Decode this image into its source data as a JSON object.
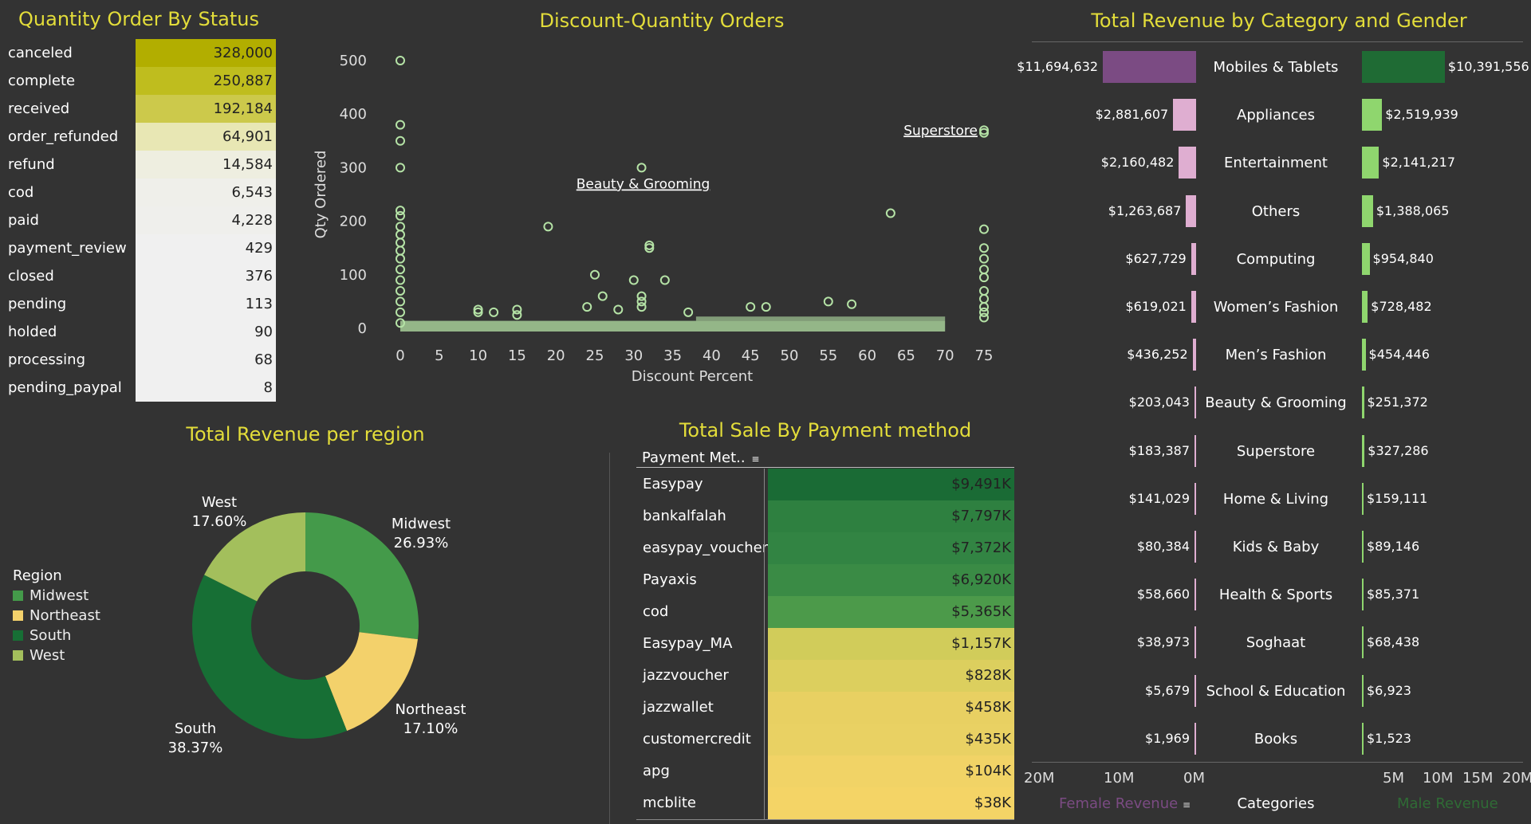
{
  "titles": {
    "status": "Quantity Order By Status",
    "scatter": "Discount-Quantity Orders",
    "category": "Total Revenue by Category and Gender",
    "region": "Total Revenue per region",
    "payment": "Total Sale By Payment method"
  },
  "colors": {
    "title": "#e3dd3a",
    "background": "#333333",
    "female": "#dfaed1",
    "female_top": "#7b4b83",
    "male": "#8fd66e",
    "male_top": "#1f6b34",
    "scatter_point": "#b5e3a6"
  },
  "status_table": {
    "rows": [
      {
        "label": "canceled",
        "value": "328,000",
        "color": "#b2ae00"
      },
      {
        "label": "complete",
        "value": "250,887",
        "color": "#bfbd1e"
      },
      {
        "label": "received",
        "value": "192,184",
        "color": "#ccc94b"
      },
      {
        "label": "order_refunded",
        "value": "64,901",
        "color": "#e8e7b4"
      },
      {
        "label": "refund",
        "value": "14,584",
        "color": "#eeeee0"
      },
      {
        "label": "cod",
        "value": "6,543",
        "color": "#efefea"
      },
      {
        "label": "paid",
        "value": "4,228",
        "color": "#efefec"
      },
      {
        "label": "payment_review",
        "value": "429",
        "color": "#f0f0f0"
      },
      {
        "label": "closed",
        "value": "376",
        "color": "#f0f0f0"
      },
      {
        "label": "pending",
        "value": "113",
        "color": "#f0f0f0"
      },
      {
        "label": "holded",
        "value": "90",
        "color": "#f0f0f0"
      },
      {
        "label": "processing",
        "value": "68",
        "color": "#f0f0f0"
      },
      {
        "label": "pending_paypal",
        "value": "8",
        "color": "#f0f0f0"
      }
    ]
  },
  "scatter": {
    "xlabel": "Discount Percent",
    "ylabel": "Qty Ordered",
    "x_ticks": [
      "0",
      "5",
      "10",
      "15",
      "20",
      "25",
      "30",
      "35",
      "40",
      "45",
      "50",
      "55",
      "60",
      "65",
      "70",
      "75"
    ],
    "y_ticks": [
      "0",
      "100",
      "200",
      "300",
      "400",
      "500"
    ],
    "annotations": [
      "Superstore",
      "Beauty & Grooming"
    ]
  },
  "region": {
    "legend_title": "Region",
    "labels": [
      {
        "name": "West",
        "pct": "17.60%"
      },
      {
        "name": "Midwest",
        "pct": "26.93%"
      },
      {
        "name": "Northeast",
        "pct": "17.10%"
      },
      {
        "name": "South",
        "pct": "38.37%"
      }
    ],
    "legend": [
      "Midwest",
      "Northeast",
      "South",
      "West"
    ]
  },
  "payment": {
    "header": "Payment Met..",
    "rows": [
      {
        "label": "Easypay",
        "value": "$9,491K",
        "color": "#1a6b35"
      },
      {
        "label": "bankalfalah",
        "value": "$7,797K",
        "color": "#2e8040"
      },
      {
        "label": "easypay_voucher",
        "value": "$7,372K",
        "color": "#328443"
      },
      {
        "label": "Payaxis",
        "value": "$6,920K",
        "color": "#3a8b45"
      },
      {
        "label": "cod",
        "value": "$5,365K",
        "color": "#4c9a4a"
      },
      {
        "label": "Easypay_MA",
        "value": "$1,157K",
        "color": "#d1cc5a"
      },
      {
        "label": "jazzvoucher",
        "value": "$828K",
        "color": "#dccf5e"
      },
      {
        "label": "jazzwallet",
        "value": "$458K",
        "color": "#e8d062"
      },
      {
        "label": "customercredit",
        "value": "$435K",
        "color": "#e9d163"
      },
      {
        "label": "apg",
        "value": "$104K",
        "color": "#f1d366"
      },
      {
        "label": "mcblite",
        "value": "$38K",
        "color": "#f4d466"
      }
    ]
  },
  "category_footer": {
    "female_ticks": [
      "20M",
      "10M",
      "0M"
    ],
    "male_ticks": [
      "5M",
      "10M",
      "15M",
      "20M"
    ],
    "female_label": "Female Revenue",
    "categories_label": "Categories",
    "male_label": "Male Revenue"
  },
  "chart_data": [
    {
      "type": "table",
      "title": "Quantity Order By Status",
      "categories": [
        "canceled",
        "complete",
        "received",
        "order_refunded",
        "refund",
        "cod",
        "paid",
        "payment_review",
        "closed",
        "pending",
        "holded",
        "processing",
        "pending_paypal"
      ],
      "values": [
        328000,
        250887,
        192184,
        64901,
        14584,
        6543,
        4228,
        429,
        376,
        113,
        90,
        68,
        8
      ]
    },
    {
      "type": "scatter",
      "title": "Discount-Quantity Orders",
      "xlabel": "Discount Percent",
      "ylabel": "Qty Ordered",
      "xlim": [
        0,
        75
      ],
      "ylim": [
        0,
        500
      ],
      "points": [
        [
          0,
          500
        ],
        [
          0,
          380
        ],
        [
          0,
          350
        ],
        [
          0,
          300
        ],
        [
          0,
          220
        ],
        [
          0,
          210
        ],
        [
          0,
          190
        ],
        [
          0,
          175
        ],
        [
          0,
          160
        ],
        [
          0,
          145
        ],
        [
          0,
          130
        ],
        [
          0,
          110
        ],
        [
          0,
          90
        ],
        [
          0,
          70
        ],
        [
          0,
          50
        ],
        [
          0,
          30
        ],
        [
          0,
          10
        ],
        [
          10,
          35
        ],
        [
          10,
          30
        ],
        [
          12,
          30
        ],
        [
          15,
          25
        ],
        [
          15,
          35
        ],
        [
          19,
          190
        ],
        [
          25,
          100
        ],
        [
          26,
          60
        ],
        [
          24,
          40
        ],
        [
          28,
          35
        ],
        [
          31,
          300
        ],
        [
          30,
          90
        ],
        [
          31,
          60
        ],
        [
          31,
          50
        ],
        [
          31,
          40
        ],
        [
          32,
          155
        ],
        [
          32,
          150
        ],
        [
          34,
          90
        ],
        [
          37,
          30
        ],
        [
          45,
          40
        ],
        [
          47,
          40
        ],
        [
          55,
          50
        ],
        [
          58,
          45
        ],
        [
          63,
          215
        ],
        [
          75,
          370
        ],
        [
          75,
          365
        ],
        [
          75,
          185
        ],
        [
          75,
          150
        ],
        [
          75,
          130
        ],
        [
          75,
          110
        ],
        [
          75,
          95
        ],
        [
          75,
          70
        ],
        [
          75,
          55
        ],
        [
          75,
          40
        ],
        [
          75,
          30
        ],
        [
          75,
          20
        ]
      ],
      "annotations": [
        {
          "text": "Superstore",
          "x": 75,
          "y": 370
        },
        {
          "text": "Beauty & Grooming",
          "x": 31,
          "y": 300
        }
      ]
    },
    {
      "type": "bar",
      "title": "Total Revenue by Category and Gender",
      "categories": [
        "Mobiles & Tablets",
        "Appliances",
        "Entertainment",
        "Others",
        "Computing",
        "Women’s Fashion",
        "Men’s Fashion",
        "Beauty & Grooming",
        "Superstore",
        "Home & Living",
        "Kids & Baby",
        "Health & Sports",
        "Soghaat",
        "School & Education",
        "Books"
      ],
      "series": [
        {
          "name": "Female Revenue",
          "values": [
            11694632,
            2881607,
            2160482,
            1263687,
            627729,
            619021,
            436252,
            203043,
            183387,
            141029,
            80384,
            58660,
            38973,
            5679,
            1969
          ],
          "labels": [
            "$11,694,632",
            "$2,881,607",
            "$2,160,482",
            "$1,263,687",
            "$627,729",
            "$619,021",
            "$436,252",
            "$203,043",
            "$183,387",
            "$141,029",
            "$80,384",
            "$58,660",
            "$38,973",
            "$5,679",
            "$1,969"
          ]
        },
        {
          "name": "Male Revenue",
          "values": [
            10391556,
            2519939,
            2141217,
            1388065,
            954840,
            728482,
            454446,
            251372,
            327286,
            159111,
            89146,
            85371,
            68438,
            6923,
            1523
          ],
          "labels": [
            "$10,391,556",
            "$2,519,939",
            "$2,141,217",
            "$1,388,065",
            "$954,840",
            "$728,482",
            "$454,446",
            "$251,372",
            "$327,286",
            "$159,111",
            "$89,146",
            "$85,371",
            "$68,438",
            "$6,923",
            "$1,523"
          ]
        }
      ],
      "xlim": [
        0,
        20000000
      ]
    },
    {
      "type": "pie",
      "title": "Total Revenue per region",
      "categories": [
        "Midwest",
        "Northeast",
        "South",
        "West"
      ],
      "values": [
        26.93,
        17.1,
        38.37,
        17.6
      ],
      "colors": [
        "#449a4a",
        "#f3d16b",
        "#176f35",
        "#a3bf5c"
      ]
    },
    {
      "type": "table",
      "title": "Total Sale By Payment method",
      "categories": [
        "Easypay",
        "bankalfalah",
        "easypay_voucher",
        "Payaxis",
        "cod",
        "Easypay_MA",
        "jazzvoucher",
        "jazzwallet",
        "customercredit",
        "apg",
        "mcblite"
      ],
      "values": [
        9491,
        7797,
        7372,
        6920,
        5365,
        1157,
        828,
        458,
        435,
        104,
        38
      ]
    }
  ]
}
